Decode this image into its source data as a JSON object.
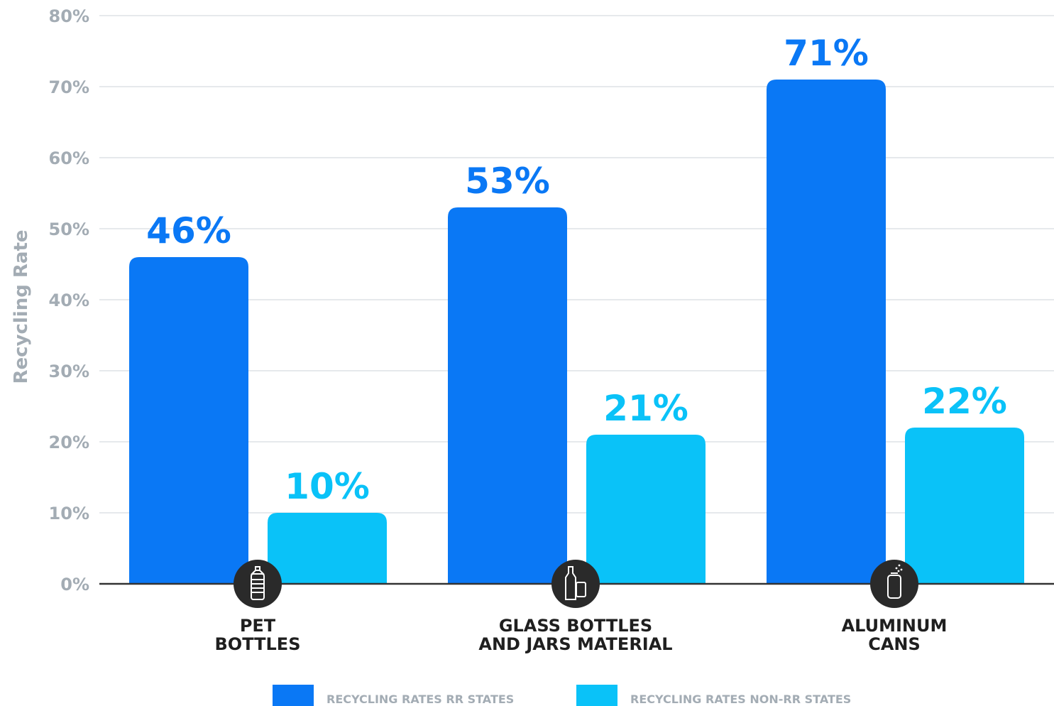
{
  "chart_data": {
    "type": "bar",
    "ylabel": "Recycling Rate",
    "ylim": [
      0,
      80
    ],
    "yticks": [
      "0%",
      "10%",
      "20%",
      "30%",
      "40%",
      "50%",
      "60%",
      "70%",
      "80%"
    ],
    "categories": [
      [
        "PET",
        "BOTTLES"
      ],
      [
        "GLASS BOTTLES",
        "AND JARS MATERIAL"
      ],
      [
        "ALUMINUM",
        "CANS"
      ]
    ],
    "category_icons": [
      "plastic-bottle-icon",
      "glass-bottle-jar-icon",
      "aluminum-can-icon"
    ],
    "series": [
      {
        "name": "RECYCLING RATES RR STATES",
        "values": [
          46,
          53,
          71
        ],
        "labels": [
          "46%",
          "53%",
          "71%"
        ],
        "color": "#0a78f5"
      },
      {
        "name": "RECYCLING RATES NON-RR STATES",
        "values": [
          10,
          21,
          22
        ],
        "labels": [
          "10%",
          "21%",
          "22%"
        ],
        "color": "#0ac2f8"
      }
    ],
    "grid": true,
    "legend": "bottom"
  },
  "colors": {
    "axis": "#333333",
    "grid": "#e6e9ec",
    "icon_bg": "#2a2a2a",
    "tick": "#a3acb4"
  }
}
